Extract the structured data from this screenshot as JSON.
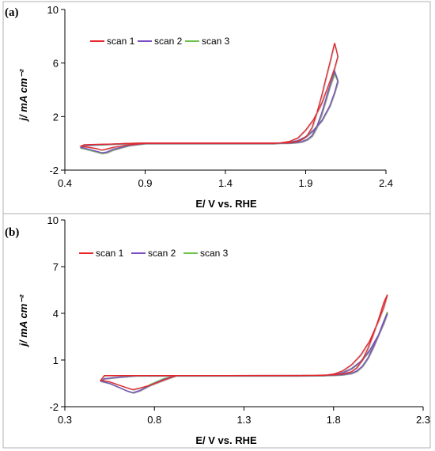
{
  "colors": {
    "scan1": "#e8262b",
    "scan2": "#7a4fc0",
    "scan3": "#6cc24a",
    "grey": "#6e6e6e",
    "axis": "#000000",
    "frame": "#b0b0b0"
  },
  "chart_data": [
    {
      "type": "line",
      "panel_label": "(a)",
      "xlabel": "E/ V  vs. RHE",
      "ylabel": "j/ mA cm⁻²",
      "xlim": [
        0.4,
        2.4
      ],
      "ylim": [
        -2,
        10
      ],
      "xticks": [
        0.4,
        0.9,
        1.4,
        1.9,
        2.4
      ],
      "xtick_labels": [
        "0.4",
        "0.9",
        "1.4",
        "1.9",
        "2.4"
      ],
      "yticks": [
        -2,
        2,
        6,
        10
      ],
      "ytick_labels": [
        "-2",
        "2",
        "6",
        "10"
      ],
      "grid": false,
      "legend_position": "top-left",
      "series": [
        {
          "name": "scan 1",
          "color_key": "scan1",
          "x": [
            0.5,
            0.52,
            0.55,
            0.6,
            0.63,
            0.65,
            0.7,
            0.8,
            0.9,
            1.2,
            1.5,
            1.7,
            1.75,
            1.8,
            1.85,
            1.9,
            1.95,
            2.0,
            2.05,
            2.08,
            2.1,
            2.08,
            2.05,
            2.02,
            2.0,
            1.97,
            1.94,
            1.91,
            1.88,
            1.85,
            1.8,
            1.7,
            1.5,
            1.2,
            0.9,
            0.8,
            0.7,
            0.6,
            0.52,
            0.5
          ],
          "y": [
            -0.2,
            -0.25,
            -0.3,
            -0.4,
            -0.5,
            -0.45,
            -0.3,
            -0.1,
            0.0,
            0.0,
            0.0,
            0.0,
            0.05,
            0.15,
            0.4,
            1.0,
            1.8,
            3.0,
            4.6,
            5.6,
            6.5,
            7.5,
            6.0,
            4.6,
            3.6,
            2.3,
            1.2,
            0.6,
            0.3,
            0.15,
            0.05,
            0.02,
            0.02,
            0.02,
            0.02,
            0.0,
            -0.05,
            -0.07,
            -0.1,
            -0.2
          ]
        },
        {
          "name": "scan 2",
          "color_key": "scan2",
          "x": [
            0.5,
            0.52,
            0.55,
            0.6,
            0.63,
            0.66,
            0.7,
            0.8,
            0.9,
            1.2,
            1.5,
            1.7,
            1.75,
            1.8,
            1.85,
            1.9,
            1.95,
            2.0,
            2.05,
            2.08,
            2.1,
            2.08,
            2.05,
            2.02,
            2.0,
            1.97,
            1.94,
            1.91,
            1.88,
            1.85,
            1.8,
            1.7,
            1.5,
            1.2,
            0.9,
            0.8,
            0.7,
            0.6,
            0.52,
            0.5
          ],
          "y": [
            -0.3,
            -0.35,
            -0.45,
            -0.6,
            -0.7,
            -0.65,
            -0.45,
            -0.15,
            0.0,
            0.0,
            0.0,
            0.0,
            0.03,
            0.08,
            0.2,
            0.5,
            1.0,
            1.7,
            2.8,
            3.8,
            4.7,
            5.4,
            4.3,
            3.1,
            2.3,
            1.3,
            0.6,
            0.3,
            0.15,
            0.08,
            0.03,
            0.02,
            0.02,
            0.02,
            0.02,
            0.0,
            -0.05,
            -0.1,
            -0.15,
            -0.3
          ]
        },
        {
          "name": "scan 3",
          "color_key": "scan3",
          "x": [
            0.5,
            0.52,
            0.55,
            0.6,
            0.63,
            0.66,
            0.7,
            0.8,
            0.9,
            1.2,
            1.5,
            1.7,
            1.75,
            1.8,
            1.85,
            1.9,
            1.95,
            2.0,
            2.05,
            2.08,
            2.1,
            2.08,
            2.05,
            2.02,
            2.0,
            1.97,
            1.94,
            1.91,
            1.88,
            1.85,
            1.8,
            1.7,
            1.5,
            1.2,
            0.9,
            0.8,
            0.7,
            0.6,
            0.52,
            0.5
          ],
          "y": [
            -0.35,
            -0.4,
            -0.5,
            -0.65,
            -0.75,
            -0.7,
            -0.5,
            -0.15,
            0.0,
            0.0,
            0.0,
            0.0,
            0.03,
            0.08,
            0.2,
            0.5,
            1.0,
            1.7,
            2.8,
            3.8,
            4.6,
            5.2,
            4.2,
            3.0,
            2.2,
            1.2,
            0.55,
            0.28,
            0.13,
            0.07,
            0.03,
            0.02,
            0.02,
            0.02,
            0.02,
            0.0,
            -0.05,
            -0.1,
            -0.15,
            -0.35
          ]
        }
      ]
    },
    {
      "type": "line",
      "panel_label": "(b)",
      "xlabel": "E/ V  vs. RHE",
      "ylabel": "j/ mA cm⁻²",
      "xlim": [
        0.3,
        2.3
      ],
      "ylim": [
        -2,
        10
      ],
      "xticks": [
        0.3,
        0.8,
        1.3,
        1.8,
        2.3
      ],
      "xtick_labels": [
        "0.3",
        "0.8",
        "1.3",
        "1.8",
        "2.3"
      ],
      "yticks": [
        -2,
        1,
        4,
        7,
        10
      ],
      "ytick_labels": [
        "-2",
        "1",
        "4",
        "7",
        "10"
      ],
      "grid": false,
      "legend_position": "top-left",
      "series": [
        {
          "name": "scan 1",
          "color_key": "scan1",
          "x": [
            0.5,
            0.55,
            0.6,
            0.65,
            0.68,
            0.72,
            0.78,
            0.85,
            0.92,
            1.2,
            1.6,
            1.75,
            1.8,
            1.85,
            1.9,
            1.95,
            2.0,
            2.05,
            2.08,
            2.1,
            2.08,
            2.05,
            2.02,
            1.99,
            1.96,
            1.93,
            1.9,
            1.85,
            1.8,
            1.7,
            1.2,
            0.9,
            0.8,
            0.7,
            0.6,
            0.52,
            0.5
          ],
          "y": [
            -0.3,
            -0.4,
            -0.6,
            -0.8,
            -0.9,
            -0.8,
            -0.6,
            -0.3,
            0.0,
            0.0,
            0.0,
            0.02,
            0.1,
            0.3,
            0.7,
            1.3,
            2.2,
            3.5,
            4.4,
            5.2,
            4.7,
            3.6,
            2.6,
            1.7,
            1.0,
            0.5,
            0.25,
            0.1,
            0.05,
            0.02,
            0.0,
            0.0,
            0.0,
            0.0,
            0.0,
            0.0,
            -0.3
          ]
        },
        {
          "name": "scan 2",
          "color_key": "scan2",
          "x": [
            0.5,
            0.55,
            0.6,
            0.65,
            0.68,
            0.72,
            0.78,
            0.85,
            0.92,
            1.2,
            1.6,
            1.75,
            1.8,
            1.85,
            1.9,
            1.95,
            2.0,
            2.05,
            2.08,
            2.1,
            2.08,
            2.05,
            2.02,
            1.99,
            1.96,
            1.93,
            1.9,
            1.85,
            1.8,
            1.7,
            1.2,
            0.9,
            0.8,
            0.7,
            0.6,
            0.52,
            0.5
          ],
          "y": [
            -0.35,
            -0.5,
            -0.75,
            -1.0,
            -1.1,
            -0.95,
            -0.6,
            -0.25,
            0.0,
            0.0,
            0.0,
            0.01,
            0.06,
            0.18,
            0.45,
            0.9,
            1.6,
            2.6,
            3.4,
            4.0,
            3.5,
            2.6,
            1.8,
            1.1,
            0.6,
            0.3,
            0.15,
            0.06,
            0.03,
            0.01,
            0.0,
            0.0,
            0.0,
            0.0,
            -0.1,
            -0.2,
            -0.35
          ]
        },
        {
          "name": "scan 3",
          "color_key": "scan3",
          "x": [
            0.5,
            0.55,
            0.6,
            0.65,
            0.68,
            0.72,
            0.78,
            0.85,
            0.92,
            1.2,
            1.6,
            1.75,
            1.8,
            1.85,
            1.9,
            1.95,
            2.0,
            2.05,
            2.08,
            2.1,
            2.08,
            2.05,
            2.02,
            1.99,
            1.96,
            1.93,
            1.9,
            1.85,
            1.8,
            1.7,
            1.2,
            0.9,
            0.8,
            0.7,
            0.6,
            0.52,
            0.5
          ],
          "y": [
            -0.35,
            -0.5,
            -0.75,
            -1.0,
            -1.1,
            -0.95,
            -0.55,
            -0.2,
            0.0,
            0.0,
            0.0,
            0.01,
            0.06,
            0.18,
            0.45,
            0.9,
            1.6,
            2.6,
            3.4,
            4.1,
            3.5,
            2.6,
            1.8,
            1.1,
            0.6,
            0.3,
            0.15,
            0.06,
            0.03,
            0.01,
            0.0,
            0.0,
            0.0,
            0.0,
            -0.1,
            -0.2,
            -0.35
          ]
        }
      ]
    }
  ]
}
